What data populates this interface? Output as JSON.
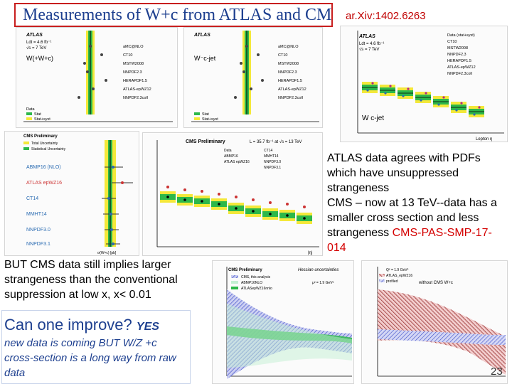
{
  "slide": {
    "title": "Measurements of W+c from ATLAS and CMS",
    "arxiv": "ar.Xiv:1402.6263",
    "text_atlas_agrees": "ATLAS data agrees with PDFs which have unsuppressed strangeness",
    "text_cms_now": "CMS – now at 13 TeV--data has a smaller cross section and less strangeness",
    "text_cms_ref": "CMS-PAS-SMP-17-014",
    "text_but": "BUT CMS data still implies larger strangeness than the conventional suppression at low x, x< 0.01",
    "improve_title": "Can one improve?",
    "improve_yes": "YES",
    "improve_body": "new data is coming BUT W/Z +c cross-section is a long way from raw data",
    "page_number": "23"
  },
  "figures": {
    "atlas1": {
      "collab": "ATLAS",
      "lumi": "Ldt = 4.6 fb⁻¹",
      "energy": "√s = 7 TeV",
      "label": "W(+W+c)",
      "pdfs": [
        "aMC@NLO",
        "CT10",
        "MSTW2008",
        "NNPDF2.3",
        "HERAPDF1.5",
        "ATLAS-epWZ12",
        "NNPDF2.3coll"
      ],
      "legend": [
        "Data",
        "Stat",
        "Stat+syst"
      ]
    },
    "atlas2": {
      "collab": "ATLAS",
      "label": "W⁻c-jet",
      "pdfs": [
        "aMC@NLO",
        "CT10",
        "MSTW2008",
        "NNPDF2.3",
        "HERAPDF1.5",
        "ATLAS-epWZ12",
        "NNPDF2.3coll"
      ],
      "legend": [
        "Stat",
        "Stat+syst"
      ]
    },
    "atlas3": {
      "collab": "ATLAS",
      "lumi": "Ldt = 4.6 fb⁻¹",
      "energy": "√s = 7 TeV",
      "label": "W c-jet",
      "xlabel": "Lepton η",
      "legend": [
        "Data (stat+syst)",
        "CT10",
        "MSTW2008",
        "NNPDF2.3",
        "HERAPDF1.5",
        "ATLAS-epWZ12",
        "NNPDF2.3coll"
      ]
    },
    "cms1": {
      "header": "CMS Preliminary",
      "legend": [
        "Total Uncertainty",
        "Statistical Uncertainty"
      ],
      "pdfs": [
        "ABMP16 (NLO)",
        "ATLAS epWZ16",
        "CT14",
        "MMHT14",
        "NNPDF3.0",
        "NNPDF3.1"
      ],
      "xlabel": "σ(W+c) [pb]"
    },
    "cms2": {
      "header": "CMS Preliminary",
      "lumi": "L = 35.7 fb⁻¹ at √s = 13 TeV",
      "legend": [
        "Data",
        "ABMP16",
        "ATLAS epWZ16",
        "CT14",
        "MMHT14",
        "NNPDF3.0",
        "NNPDF3.1"
      ],
      "xlabel": "|η|"
    },
    "cms3": {
      "header": "CMS Preliminary",
      "legend": [
        "CMS, this analysis",
        "ABMP16NLO",
        "ATLASepWZ16nnlo"
      ],
      "subtitle": "Hessian uncertainties",
      "q2": "μ² = 1.9 GeV²"
    },
    "cms4": {
      "legend": [
        "Q² = 1.9 GeV²",
        "ATLAS_epWZ16",
        "profiled"
      ],
      "annotation": "without CMS W+c"
    }
  },
  "colors": {
    "title": "#1d3f8f",
    "title_border": "#c81e1e",
    "red_text": "#d40000",
    "green_band": "#2db84a",
    "yellow_band": "#f4e83a",
    "blue_band": "#3b4bc8",
    "dark_red_band": "#8b1a1a"
  }
}
